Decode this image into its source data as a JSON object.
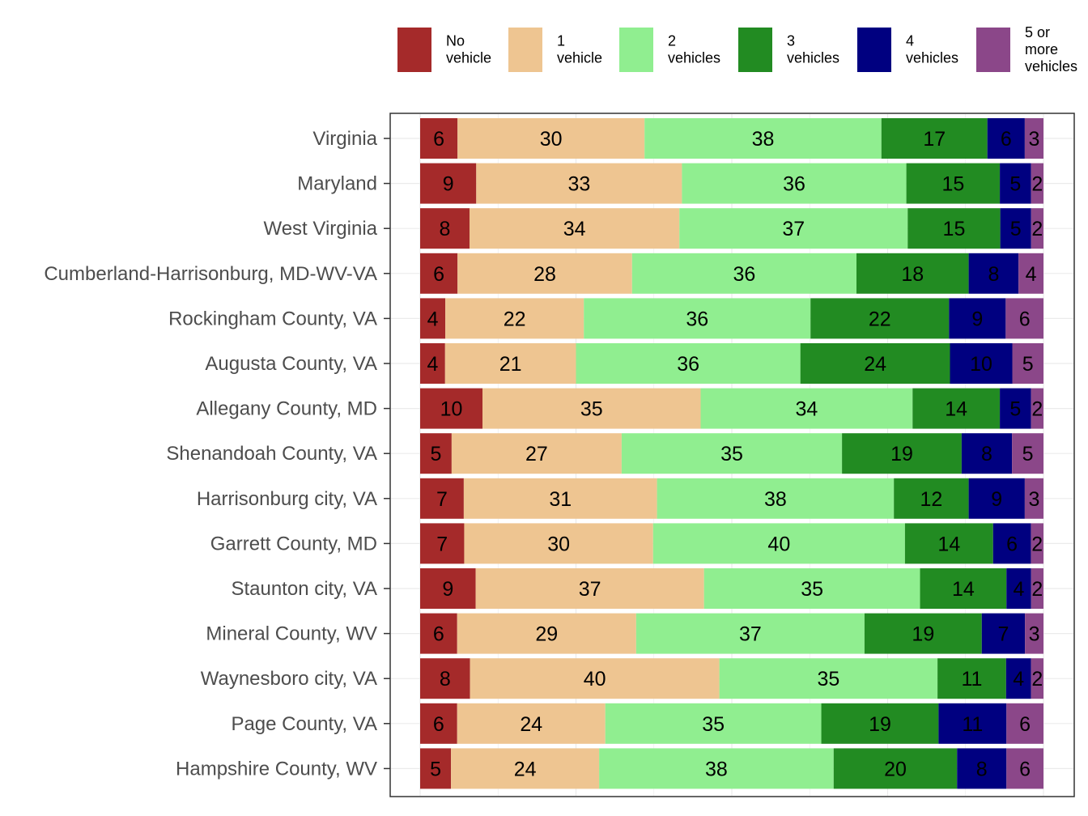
{
  "chart_data": {
    "type": "bar",
    "orientation": "horizontal",
    "stacked": true,
    "title": "",
    "xlabel": "",
    "ylabel": "",
    "xlim": [
      0,
      100
    ],
    "legend_position": "top-right",
    "categories": [
      "Virginia",
      "Maryland",
      "West Virginia",
      "Cumberland-Harrisonburg, MD-WV-VA",
      "Rockingham County, VA",
      "Augusta County, VA",
      "Allegany County, MD",
      "Shenandoah County, VA",
      "Harrisonburg city, VA",
      "Garrett County, MD",
      "Staunton city, VA",
      "Mineral County, WV",
      "Waynesboro city, VA",
      "Page County, VA",
      "Hampshire County, WV"
    ],
    "series": [
      {
        "name": "No vehicle",
        "legend_lines": [
          "No",
          "vehicle"
        ],
        "color": "#A52A2A",
        "values": [
          6,
          9,
          8,
          6,
          4,
          4,
          10,
          5,
          7,
          7,
          9,
          6,
          8,
          6,
          5
        ]
      },
      {
        "name": "1 vehicle",
        "legend_lines": [
          "1",
          "vehicle"
        ],
        "color": "#EEC591",
        "values": [
          30,
          33,
          34,
          28,
          22,
          21,
          35,
          27,
          31,
          30,
          37,
          29,
          40,
          24,
          24
        ]
      },
      {
        "name": "2 vehicles",
        "legend_lines": [
          "2",
          "vehicles"
        ],
        "color": "#90EE90",
        "values": [
          38,
          36,
          37,
          36,
          36,
          36,
          34,
          35,
          38,
          40,
          35,
          37,
          35,
          35,
          38
        ]
      },
      {
        "name": "3 vehicles",
        "legend_lines": [
          "3",
          "vehicles"
        ],
        "color": "#228B22",
        "values": [
          17,
          15,
          15,
          18,
          22,
          24,
          14,
          19,
          12,
          14,
          14,
          19,
          11,
          19,
          20
        ]
      },
      {
        "name": "4 vehicles",
        "legend_lines": [
          "4",
          "vehicles"
        ],
        "color": "#000080",
        "values": [
          6,
          5,
          5,
          8,
          9,
          10,
          5,
          8,
          9,
          6,
          4,
          7,
          4,
          11,
          8
        ]
      },
      {
        "name": "5 or more vehicles",
        "legend_lines": [
          "5 or",
          "more",
          "vehicles"
        ],
        "color": "#8B4789",
        "values": [
          3,
          2,
          2,
          4,
          6,
          5,
          2,
          5,
          3,
          2,
          2,
          3,
          2,
          6,
          6
        ]
      }
    ]
  }
}
